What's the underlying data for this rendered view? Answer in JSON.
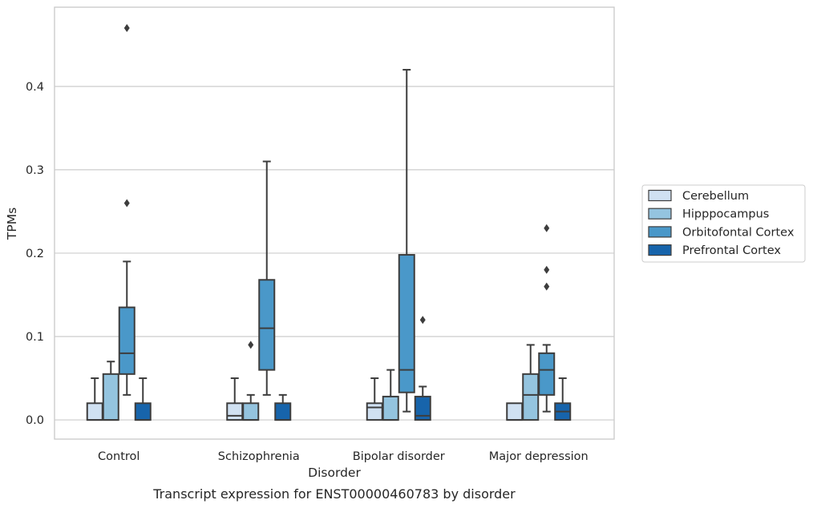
{
  "chart_data": {
    "type": "box",
    "xlabel": "Disorder",
    "ylabel": "TPMs",
    "caption": "Transcript expression for ENST00000460783 by disorder",
    "ylim": [
      -0.023,
      0.495
    ],
    "yticks": [
      "0.0",
      "0.1",
      "0.2",
      "0.3",
      "0.4"
    ],
    "yticks_values": [
      0.0,
      0.1,
      0.2,
      0.3,
      0.4
    ],
    "grid": "horizontal",
    "legend_position": "center-right",
    "categories": [
      "Control",
      "Schizophrenia",
      "Bipolar disorder",
      "Major depression"
    ],
    "series": [
      {
        "name": "Cerebellum",
        "color": "#d0e1f2",
        "boxes": [
          {
            "low": 0.0,
            "q1": 0.0,
            "median": 0.0,
            "q3": 0.02,
            "high": 0.05,
            "outliers": []
          },
          {
            "low": 0.0,
            "q1": 0.0,
            "median": 0.005,
            "q3": 0.02,
            "high": 0.05,
            "outliers": []
          },
          {
            "low": 0.0,
            "q1": 0.0,
            "median": 0.015,
            "q3": 0.02,
            "high": 0.05,
            "outliers": []
          },
          {
            "low": 0.0,
            "q1": 0.0,
            "median": 0.0,
            "q3": 0.02,
            "high": 0.02,
            "outliers": []
          }
        ]
      },
      {
        "name": "Hipppocampus",
        "color": "#94c4df",
        "boxes": [
          {
            "low": 0.0,
            "q1": 0.0,
            "median": 0.0,
            "q3": 0.055,
            "high": 0.07,
            "outliers": []
          },
          {
            "low": 0.0,
            "q1": 0.0,
            "median": 0.0,
            "q3": 0.02,
            "high": 0.03,
            "outliers": [
              0.09
            ]
          },
          {
            "low": 0.0,
            "q1": 0.0,
            "median": 0.0,
            "q3": 0.028,
            "high": 0.06,
            "outliers": []
          },
          {
            "low": 0.0,
            "q1": 0.0,
            "median": 0.03,
            "q3": 0.055,
            "high": 0.09,
            "outliers": []
          }
        ]
      },
      {
        "name": "Orbitofontal Cortex",
        "color": "#4a98c9",
        "boxes": [
          {
            "low": 0.03,
            "q1": 0.055,
            "median": 0.08,
            "q3": 0.135,
            "high": 0.19,
            "outliers": [
              0.26,
              0.47
            ]
          },
          {
            "low": 0.03,
            "q1": 0.06,
            "median": 0.11,
            "q3": 0.168,
            "high": 0.31,
            "outliers": []
          },
          {
            "low": 0.01,
            "q1": 0.033,
            "median": 0.06,
            "q3": 0.198,
            "high": 0.42,
            "outliers": []
          },
          {
            "low": 0.01,
            "q1": 0.03,
            "median": 0.06,
            "q3": 0.08,
            "high": 0.09,
            "outliers": [
              0.16,
              0.18,
              0.23
            ]
          }
        ]
      },
      {
        "name": "Prefrontal Cortex",
        "color": "#1764ab",
        "boxes": [
          {
            "low": 0.0,
            "q1": 0.0,
            "median": 0.0,
            "q3": 0.02,
            "high": 0.05,
            "outliers": []
          },
          {
            "low": 0.0,
            "q1": 0.0,
            "median": 0.0,
            "q3": 0.02,
            "high": 0.03,
            "outliers": []
          },
          {
            "low": 0.0,
            "q1": 0.0,
            "median": 0.005,
            "q3": 0.028,
            "high": 0.04,
            "outliers": [
              0.12
            ]
          },
          {
            "low": 0.0,
            "q1": 0.0,
            "median": 0.01,
            "q3": 0.02,
            "high": 0.05,
            "outliers": []
          }
        ]
      }
    ]
  }
}
